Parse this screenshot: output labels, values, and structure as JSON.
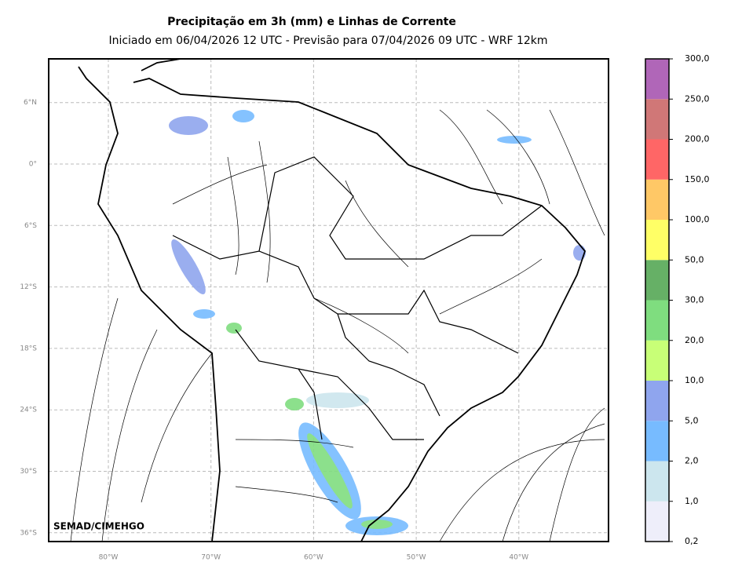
{
  "header": {
    "title": "Precipitação em 3h (mm) e Linhas de Corrente",
    "subtitle": "Iniciado em 06/04/2026 12 UTC - Previsão para 07/04/2026 09 UTC - WRF 12km"
  },
  "map": {
    "watermark": "SEMAD/CIMEHGO",
    "lat_ticks": [
      {
        "value": 6,
        "label": "6°N"
      },
      {
        "value": 0,
        "label": "0°"
      },
      {
        "value": -6,
        "label": "6°S"
      },
      {
        "value": -12,
        "label": "12°S"
      },
      {
        "value": -18,
        "label": "18°S"
      },
      {
        "value": -24,
        "label": "24°S"
      },
      {
        "value": -30,
        "label": "30°S"
      },
      {
        "value": -36,
        "label": "36°S"
      }
    ],
    "lon_ticks": [
      {
        "value": -80,
        "label": "80°W"
      },
      {
        "value": -70,
        "label": "70°W"
      },
      {
        "value": -60,
        "label": "60°W"
      },
      {
        "value": -50,
        "label": "50°W"
      },
      {
        "value": -40,
        "label": "40°W"
      }
    ]
  },
  "colorbar": {
    "colors": [
      "#eeeefa",
      "#cce6ee",
      "#77bbff",
      "#8fa5ee",
      "#c8ff77",
      "#7fdd7f",
      "#66b066",
      "#ffff66",
      "#ffc866",
      "#ff6666",
      "#d07777",
      "#b066b8"
    ],
    "labels": [
      "0,2",
      "1,0",
      "2,0",
      "5,0",
      "10,0",
      "20,0",
      "30,0",
      "50,0",
      "100,0",
      "150,0",
      "200,0",
      "250,0",
      "300,0"
    ]
  }
}
